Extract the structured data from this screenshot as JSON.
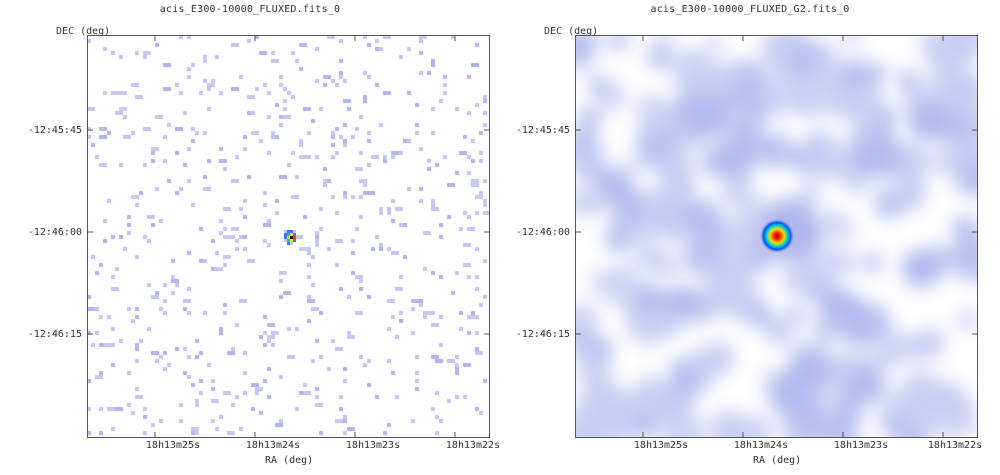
{
  "chart_data": [
    {
      "type": "heatmap",
      "title": "acis_E300-10000_FLUXED.fits_0",
      "xlabel": "RA (deg)",
      "ylabel": "DEC (deg)",
      "xticks": [
        "18h13m25s",
        "18h13m24s",
        "18h13m23s",
        "18h13m22s"
      ],
      "yticks": [
        "-12:45:45",
        "-12:46:00",
        "-12:46:15"
      ],
      "source": {
        "ra": "18h13m24s",
        "dec": "-12:46:00"
      },
      "colormap": [
        "#ffffff",
        "#c8c8f4",
        "#3c78ff",
        "#00c8c8",
        "#ffe600",
        "#ff3c00",
        "#000000"
      ],
      "background": "sparse"
    },
    {
      "type": "heatmap",
      "title": "acis_E300-10000_FLUXED_G2.fits_0",
      "xlabel": "RA (deg)",
      "ylabel": "DEC (deg)",
      "xticks": [
        "18h13m25s",
        "18h13m24s",
        "18h13m23s",
        "18h13m22s"
      ],
      "yticks": [
        "-12:45:45",
        "-12:46:00",
        "-12:46:15"
      ],
      "source": {
        "ra": "18h13m24s",
        "dec": "-12:46:00"
      },
      "colormap": [
        "#ffffff",
        "#dde0f8",
        "#8c96e6",
        "#0050ff",
        "#00d2c8",
        "#ffdc00",
        "#ff3200",
        "#a00000"
      ],
      "background": "smoothed"
    }
  ]
}
